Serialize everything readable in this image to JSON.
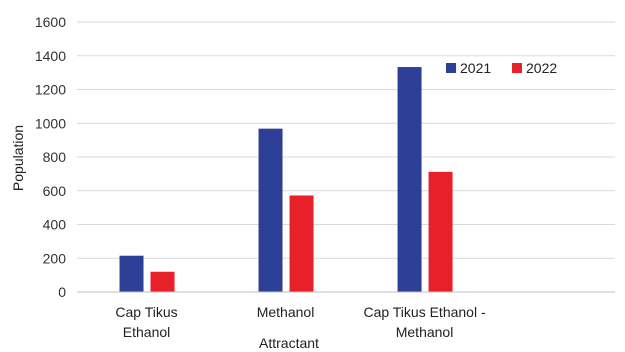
{
  "chart_data": {
    "type": "bar",
    "xlabel": "Attractant",
    "ylabel": "Population",
    "ylim": [
      0,
      1600
    ],
    "yticks": [
      0,
      200,
      400,
      600,
      800,
      1000,
      1200,
      1400,
      1600
    ],
    "grid": "horizontal",
    "legend_position": "top-right",
    "categories": [
      [
        "Cap Tikus",
        "Ethanol"
      ],
      [
        "Methanol"
      ],
      [
        "Cap Tikus Ethanol -",
        "Methanol"
      ]
    ],
    "series": [
      {
        "name": "2021",
        "color": "#2E3F98",
        "values": [
          215,
          968,
          1333
        ]
      },
      {
        "name": "2022",
        "color": "#E8202A",
        "values": [
          120,
          572,
          712
        ]
      }
    ]
  }
}
